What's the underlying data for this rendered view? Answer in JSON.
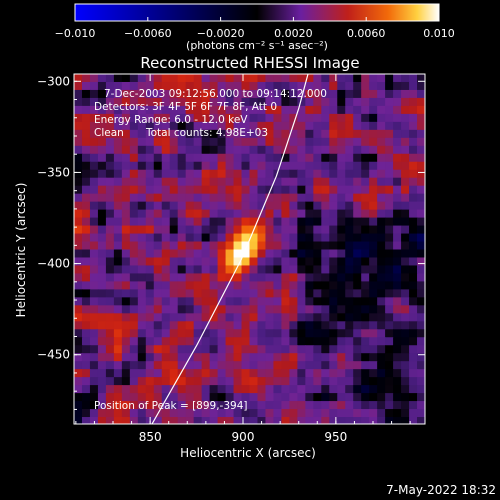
{
  "colorbar": {
    "min": -0.01,
    "max": 0.01,
    "tick_labels": [
      "−0.010",
      "−0.0060",
      "−0.0020",
      "0.0020",
      "0.0060",
      "0.010"
    ],
    "tick_values": [
      -0.01,
      -0.006,
      -0.002,
      0.002,
      0.006,
      0.01
    ],
    "units_label": "(photons cm⁻² s⁻¹ asec⁻²)",
    "colors": [
      "#0000ff",
      "#000000",
      "#6a1fa0",
      "#c0201a",
      "#f26a0a",
      "#ffd040",
      "#ffffff"
    ]
  },
  "chart_data": {
    "type": "heatmap",
    "title": "Reconstructed RHESSI Image",
    "xlabel": "Heliocentric X (arcsec)",
    "ylabel": "Heliocentric Y (arcsec)",
    "xlim": [
      809,
      998
    ],
    "ylim": [
      -488,
      -296
    ],
    "x_ticks": [
      850,
      900,
      950
    ],
    "y_ticks": [
      -300,
      -350,
      -400,
      -450
    ],
    "x_tick_labels": [
      "850",
      "900",
      "950"
    ],
    "y_tick_labels": [
      "−300",
      "−350",
      "−400",
      "−450"
    ],
    "peak": {
      "x": 899,
      "y": -394,
      "value": 0.01
    },
    "limb_arc": [
      [
        851,
        -488
      ],
      [
        875,
        -445
      ],
      [
        899,
        -398
      ],
      [
        918,
        -352
      ],
      [
        930,
        -315
      ],
      [
        935,
        -296
      ]
    ],
    "annotations": [
      "7-Dec-2003 09:12:56.000 to 09:14:12.000",
      "Detectors: 3F 4F 5F 6F 7F 8F, Att 0",
      "Energy Range: 6.0 - 12.0 keV",
      "Clean",
      "Total counts: 4.98E+03"
    ],
    "peak_label": "Position of Peak = [899,-394]"
  },
  "footer": {
    "timestamp": "7-May-2022 18:32"
  }
}
